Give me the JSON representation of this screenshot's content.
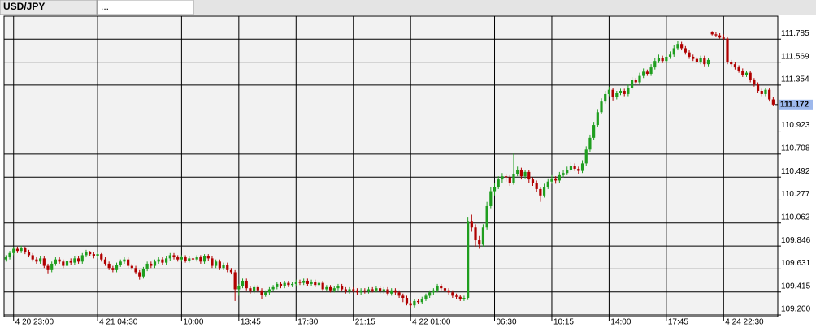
{
  "tabs": [
    "USD/JPY",
    "..."
  ],
  "chart_data": {
    "type": "candlestick",
    "up_color": "#1f9e1f",
    "down_color": "#b00000",
    "grid": true,
    "xlim": [
      -0.5,
      202.2
    ],
    "xticks": [
      {
        "value": 2,
        "label": "4 20 23:00"
      },
      {
        "value": 24,
        "label": "4 21 04:30"
      },
      {
        "value": 46,
        "label": "10:00"
      },
      {
        "value": 61,
        "label": "13:45"
      },
      {
        "value": 76,
        "label": "17:30"
      },
      {
        "value": 91,
        "label": "21:15"
      },
      {
        "value": 106,
        "label": "4 22 01:00"
      },
      {
        "value": 128,
        "label": "06:30"
      },
      {
        "value": 143,
        "label": "10:15"
      },
      {
        "value": 158,
        "label": "14:00"
      },
      {
        "value": 173,
        "label": "17:45"
      },
      {
        "value": 188,
        "label": "4 24 22:30"
      }
    ],
    "ylim": [
      109.185,
      112.0
    ],
    "yticks": [
      111.785,
      111.569,
      111.354,
      110.923,
      110.708,
      110.492,
      110.277,
      110.062,
      109.846,
      109.631,
      109.415,
      {
        "value": 109.2,
        "label": "109.200"
      }
    ],
    "current_price": 111.172,
    "candles": [
      [
        109.72,
        109.76,
        109.7,
        109.74
      ],
      [
        109.74,
        109.8,
        109.72,
        109.78
      ],
      [
        109.78,
        109.84,
        109.76,
        109.82
      ],
      [
        109.82,
        109.84,
        109.78,
        109.8
      ],
      [
        109.8,
        109.85,
        109.78,
        109.83
      ],
      [
        109.83,
        109.84,
        109.77,
        109.79
      ],
      [
        109.79,
        109.81,
        109.74,
        109.76
      ],
      [
        109.76,
        109.78,
        109.7,
        109.72
      ],
      [
        109.72,
        109.74,
        109.68,
        109.7
      ],
      [
        109.7,
        109.75,
        109.68,
        109.73
      ],
      [
        109.73,
        109.75,
        109.64,
        109.66
      ],
      [
        109.66,
        109.68,
        109.59,
        109.62
      ],
      [
        109.62,
        109.7,
        109.6,
        109.68
      ],
      [
        109.68,
        109.74,
        109.66,
        109.72
      ],
      [
        109.72,
        109.74,
        109.68,
        109.7
      ],
      [
        109.7,
        109.72,
        109.64,
        109.66
      ],
      [
        109.66,
        109.73,
        109.64,
        109.71
      ],
      [
        109.71,
        109.73,
        109.67,
        109.69
      ],
      [
        109.69,
        109.75,
        109.67,
        109.73
      ],
      [
        109.73,
        109.75,
        109.68,
        109.7
      ],
      [
        109.7,
        109.78,
        109.68,
        109.76
      ],
      [
        109.76,
        109.81,
        109.74,
        109.79
      ],
      [
        109.79,
        109.8,
        109.75,
        109.77
      ],
      [
        109.77,
        109.79,
        109.73,
        109.75
      ],
      [
        109.75,
        109.79,
        109.73,
        109.77
      ],
      [
        109.77,
        109.78,
        109.7,
        109.72
      ],
      [
        109.72,
        109.74,
        109.66,
        109.68
      ],
      [
        109.68,
        109.7,
        109.62,
        109.64
      ],
      [
        109.64,
        109.66,
        109.6,
        109.62
      ],
      [
        109.62,
        109.69,
        109.6,
        109.67
      ],
      [
        109.67,
        109.72,
        109.65,
        109.7
      ],
      [
        109.7,
        109.74,
        109.68,
        109.72
      ],
      [
        109.72,
        109.74,
        109.64,
        109.66
      ],
      [
        109.66,
        109.68,
        109.62,
        109.64
      ],
      [
        109.64,
        109.66,
        109.58,
        109.6
      ],
      [
        109.6,
        109.62,
        109.53,
        109.56
      ],
      [
        109.56,
        109.65,
        109.54,
        109.63
      ],
      [
        109.63,
        109.7,
        109.61,
        109.68
      ],
      [
        109.68,
        109.7,
        109.64,
        109.66
      ],
      [
        109.66,
        109.72,
        109.64,
        109.7
      ],
      [
        109.7,
        109.74,
        109.68,
        109.72
      ],
      [
        109.72,
        109.74,
        109.67,
        109.69
      ],
      [
        109.69,
        109.75,
        109.67,
        109.73
      ],
      [
        109.73,
        109.78,
        109.71,
        109.76
      ],
      [
        109.76,
        109.78,
        109.72,
        109.74
      ],
      [
        109.74,
        109.76,
        109.7,
        109.72
      ],
      [
        109.72,
        109.76,
        109.7,
        109.74
      ],
      [
        109.74,
        109.76,
        109.69,
        109.71
      ],
      [
        109.71,
        109.75,
        109.69,
        109.73
      ],
      [
        109.73,
        109.75,
        109.7,
        109.72
      ],
      [
        109.72,
        109.76,
        109.7,
        109.74
      ],
      [
        109.74,
        109.76,
        109.68,
        109.7
      ],
      [
        109.7,
        109.77,
        109.68,
        109.75
      ],
      [
        109.75,
        109.77,
        109.71,
        109.73
      ],
      [
        109.73,
        109.75,
        109.64,
        109.66
      ],
      [
        109.66,
        109.72,
        109.64,
        109.7
      ],
      [
        109.7,
        109.72,
        109.62,
        109.64
      ],
      [
        109.64,
        109.69,
        109.62,
        109.67
      ],
      [
        109.67,
        109.69,
        109.6,
        109.62
      ],
      [
        109.62,
        109.64,
        109.58,
        109.6
      ],
      [
        109.6,
        109.62,
        109.33,
        109.44
      ],
      [
        109.44,
        109.49,
        109.38,
        109.47
      ],
      [
        109.47,
        109.54,
        109.45,
        109.52
      ],
      [
        109.52,
        109.54,
        109.43,
        109.45
      ],
      [
        109.45,
        109.47,
        109.4,
        109.42
      ],
      [
        109.42,
        109.48,
        109.4,
        109.46
      ],
      [
        109.46,
        109.48,
        109.41,
        109.43
      ],
      [
        109.43,
        109.45,
        109.35,
        109.39
      ],
      [
        109.39,
        109.43,
        109.37,
        109.41
      ],
      [
        109.41,
        109.46,
        109.39,
        109.44
      ],
      [
        109.44,
        109.48,
        109.42,
        109.46
      ],
      [
        109.46,
        109.51,
        109.44,
        109.49
      ],
      [
        109.49,
        109.51,
        109.45,
        109.47
      ],
      [
        109.47,
        109.52,
        109.45,
        109.5
      ],
      [
        109.5,
        109.52,
        109.46,
        109.48
      ],
      [
        109.48,
        109.51,
        109.46,
        109.49
      ],
      [
        109.49,
        109.53,
        109.47,
        109.51
      ],
      [
        109.51,
        109.53,
        109.48,
        109.5
      ],
      [
        109.5,
        109.54,
        109.48,
        109.52
      ],
      [
        109.52,
        109.54,
        109.47,
        109.49
      ],
      [
        109.49,
        109.53,
        109.47,
        109.51
      ],
      [
        109.51,
        109.53,
        109.46,
        109.48
      ],
      [
        109.48,
        109.52,
        109.46,
        109.5
      ],
      [
        109.5,
        109.52,
        109.42,
        109.44
      ],
      [
        109.44,
        109.48,
        109.42,
        109.46
      ],
      [
        109.46,
        109.48,
        109.41,
        109.43
      ],
      [
        109.43,
        109.47,
        109.41,
        109.45
      ],
      [
        109.45,
        109.49,
        109.43,
        109.47
      ],
      [
        109.47,
        109.49,
        109.42,
        109.44
      ],
      [
        109.44,
        109.46,
        109.4,
        109.42
      ],
      [
        109.42,
        109.46,
        109.4,
        109.44
      ],
      [
        109.44,
        109.46,
        109.41,
        109.43
      ],
      [
        109.43,
        109.45,
        109.39,
        109.41
      ],
      [
        109.41,
        109.45,
        109.39,
        109.43
      ],
      [
        109.43,
        109.45,
        109.4,
        109.42
      ],
      [
        109.42,
        109.46,
        109.4,
        109.44
      ],
      [
        109.44,
        109.46,
        109.41,
        109.43
      ],
      [
        109.43,
        109.47,
        109.41,
        109.45
      ],
      [
        109.45,
        109.47,
        109.4,
        109.42
      ],
      [
        109.42,
        109.46,
        109.4,
        109.44
      ],
      [
        109.44,
        109.46,
        109.38,
        109.4
      ],
      [
        109.4,
        109.45,
        109.38,
        109.43
      ],
      [
        109.43,
        109.45,
        109.39,
        109.41
      ],
      [
        109.41,
        109.43,
        109.36,
        109.38
      ],
      [
        109.38,
        109.4,
        109.32,
        109.36
      ],
      [
        109.36,
        109.38,
        109.29,
        109.31
      ],
      [
        109.31,
        109.33,
        109.27,
        109.29
      ],
      [
        109.29,
        109.35,
        109.27,
        109.33
      ],
      [
        109.33,
        109.35,
        109.3,
        109.32
      ],
      [
        109.32,
        109.37,
        109.3,
        109.35
      ],
      [
        109.35,
        109.4,
        109.33,
        109.38
      ],
      [
        109.38,
        109.43,
        109.36,
        109.41
      ],
      [
        109.41,
        109.45,
        109.39,
        109.43
      ],
      [
        109.43,
        109.49,
        109.41,
        109.47
      ],
      [
        109.47,
        109.49,
        109.43,
        109.45
      ],
      [
        109.45,
        109.47,
        109.41,
        109.43
      ],
      [
        109.43,
        109.45,
        109.39,
        109.41
      ],
      [
        109.41,
        109.43,
        109.36,
        109.38
      ],
      [
        109.38,
        109.4,
        109.35,
        109.37
      ],
      [
        109.37,
        109.39,
        109.33,
        109.35
      ],
      [
        109.35,
        109.38,
        109.33,
        109.36
      ],
      [
        109.36,
        110.12,
        109.34,
        110.08
      ],
      [
        110.08,
        110.14,
        109.98,
        110.02
      ],
      [
        110.02,
        110.05,
        109.84,
        109.9
      ],
      [
        109.9,
        109.94,
        109.82,
        109.86
      ],
      [
        109.86,
        110.05,
        109.84,
        110.02
      ],
      [
        110.02,
        110.26,
        110.0,
        110.22
      ],
      [
        110.22,
        110.4,
        110.2,
        110.36
      ],
      [
        110.36,
        110.44,
        110.32,
        110.4
      ],
      [
        110.4,
        110.5,
        110.38,
        110.47
      ],
      [
        110.47,
        110.53,
        110.44,
        110.5
      ],
      [
        110.5,
        110.52,
        110.45,
        110.49
      ],
      [
        110.49,
        110.51,
        110.41,
        110.44
      ],
      [
        110.44,
        110.72,
        110.42,
        110.52
      ],
      [
        110.52,
        110.59,
        110.5,
        110.56
      ],
      [
        110.56,
        110.58,
        110.47,
        110.5
      ],
      [
        110.5,
        110.56,
        110.48,
        110.54
      ],
      [
        110.54,
        110.56,
        110.44,
        110.47
      ],
      [
        110.47,
        110.49,
        110.41,
        110.44
      ],
      [
        110.44,
        110.46,
        110.35,
        110.38
      ],
      [
        110.38,
        110.4,
        110.26,
        110.32
      ],
      [
        110.32,
        110.43,
        110.3,
        110.4
      ],
      [
        110.4,
        110.48,
        110.38,
        110.45
      ],
      [
        110.45,
        110.51,
        110.43,
        110.48
      ],
      [
        110.48,
        110.5,
        110.43,
        110.46
      ],
      [
        110.46,
        110.54,
        110.44,
        110.51
      ],
      [
        110.51,
        110.56,
        110.49,
        110.53
      ],
      [
        110.53,
        110.59,
        110.51,
        110.56
      ],
      [
        110.56,
        110.63,
        110.54,
        110.6
      ],
      [
        110.6,
        110.62,
        110.55,
        110.57
      ],
      [
        110.57,
        110.59,
        110.52,
        110.55
      ],
      [
        110.55,
        110.65,
        110.53,
        110.62
      ],
      [
        110.62,
        110.78,
        110.6,
        110.75
      ],
      [
        110.75,
        110.89,
        110.73,
        110.86
      ],
      [
        110.86,
        111.01,
        110.84,
        110.98
      ],
      [
        110.98,
        111.13,
        110.96,
        111.1
      ],
      [
        111.1,
        111.23,
        111.08,
        111.2
      ],
      [
        111.2,
        111.3,
        111.18,
        111.27
      ],
      [
        111.27,
        111.34,
        111.25,
        111.31
      ],
      [
        111.31,
        111.33,
        111.21,
        111.24
      ],
      [
        111.24,
        111.3,
        111.22,
        111.28
      ],
      [
        111.28,
        111.32,
        111.26,
        111.3
      ],
      [
        111.3,
        111.32,
        111.25,
        111.27
      ],
      [
        111.27,
        111.36,
        111.25,
        111.33
      ],
      [
        111.33,
        111.43,
        111.31,
        111.4
      ],
      [
        111.4,
        111.42,
        111.36,
        111.38
      ],
      [
        111.38,
        111.47,
        111.36,
        111.44
      ],
      [
        111.44,
        111.51,
        111.42,
        111.48
      ],
      [
        111.48,
        111.5,
        111.44,
        111.46
      ],
      [
        111.46,
        111.55,
        111.44,
        111.52
      ],
      [
        111.52,
        111.61,
        111.5,
        111.58
      ],
      [
        111.58,
        111.64,
        111.56,
        111.61
      ],
      [
        111.61,
        111.63,
        111.56,
        111.58
      ],
      [
        111.58,
        111.65,
        111.56,
        111.62
      ],
      [
        111.62,
        111.67,
        111.6,
        111.64
      ],
      [
        111.64,
        111.73,
        111.62,
        111.7
      ],
      [
        111.7,
        111.77,
        111.68,
        111.74
      ],
      [
        111.74,
        111.76,
        111.68,
        111.7
      ],
      [
        111.7,
        111.72,
        111.64,
        111.66
      ],
      [
        111.66,
        111.68,
        111.6,
        111.62
      ],
      [
        111.62,
        111.64,
        111.58,
        111.6
      ],
      [
        111.6,
        111.62,
        111.55,
        111.57
      ],
      [
        111.57,
        111.63,
        111.55,
        111.61
      ],
      [
        111.61,
        111.63,
        111.53,
        111.55
      ],
      [
        111.55,
        111.61,
        111.53,
        111.59
      ],
      [
        111.85,
        111.86,
        111.82,
        111.83
      ],
      [
        111.83,
        111.85,
        111.81,
        111.82
      ],
      [
        111.82,
        111.84,
        111.79,
        111.8
      ],
      [
        111.8,
        111.83,
        111.78,
        111.79
      ],
      [
        111.79,
        111.81,
        111.55,
        111.57
      ],
      [
        111.57,
        111.59,
        111.53,
        111.55
      ],
      [
        111.55,
        111.57,
        111.5,
        111.52
      ],
      [
        111.52,
        111.54,
        111.47,
        111.49
      ],
      [
        111.49,
        111.51,
        111.43,
        111.45
      ],
      [
        111.45,
        111.49,
        111.43,
        111.47
      ],
      [
        111.47,
        111.49,
        111.38,
        111.4
      ],
      [
        111.4,
        111.42,
        111.34,
        111.36
      ],
      [
        111.36,
        111.38,
        111.28,
        111.3
      ],
      [
        111.3,
        111.32,
        111.25,
        111.27
      ],
      [
        111.27,
        111.33,
        111.25,
        111.31
      ],
      [
        111.31,
        111.33,
        111.2,
        111.22
      ],
      [
        111.22,
        111.24,
        111.16,
        111.172
      ]
    ]
  }
}
